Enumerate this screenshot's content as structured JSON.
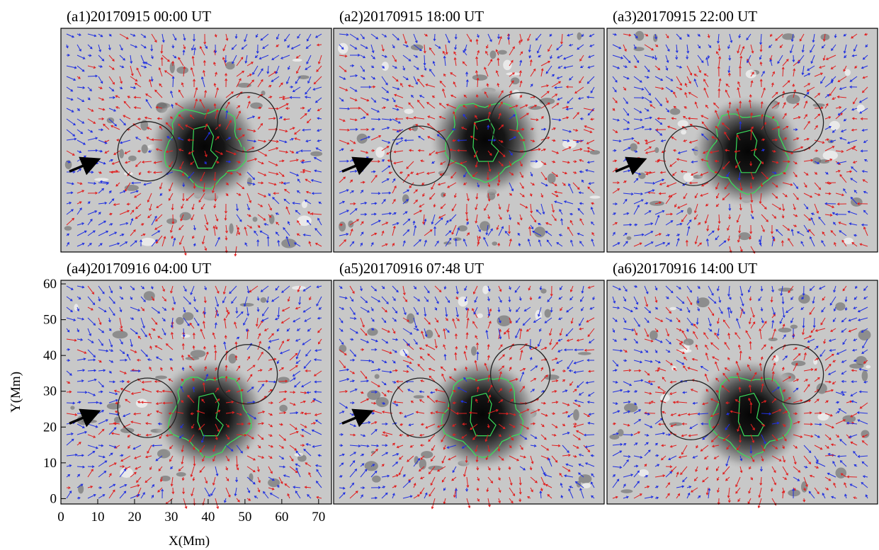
{
  "chart_data": {
    "type": "image-panels",
    "panels": [
      {
        "title": "(a1)20170915  00:00 UT"
      },
      {
        "title": "(a2)20170915  18:00 UT"
      },
      {
        "title": "(a3)20170915  22:00 UT"
      },
      {
        "title": "(a4)20170916  04:00 UT"
      },
      {
        "title": "(a5)20170916  07:48 UT"
      },
      {
        "title": "(a6)20170916  14:00 UT"
      }
    ],
    "xlabel": "X(Mm)",
    "ylabel": "Y(Mm)",
    "xlim": [
      0,
      73.5
    ],
    "ylim": [
      -1.5,
      61
    ],
    "xticks": [
      0,
      10,
      20,
      30,
      40,
      50,
      60,
      70
    ],
    "yticks": [
      0,
      10,
      20,
      30,
      40,
      50,
      60
    ]
  }
}
